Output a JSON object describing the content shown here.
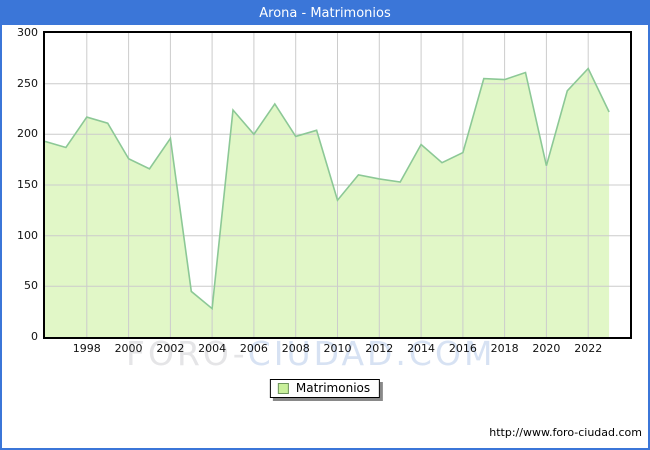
{
  "title": "Arona - Matrimonios",
  "legend": {
    "label": "Matrimonios"
  },
  "watermark": {
    "part1": "FORO-",
    "part2": "CIUDAD.COM"
  },
  "footer": {
    "url": "http://www.foro-ciudad.com"
  },
  "colors": {
    "titlebar": "#3b76d8",
    "frame_border": "#3b76d8",
    "area_fill": "#e1f7c7",
    "area_stroke": "#8cc896",
    "gridline": "#cccccc",
    "plot_border": "#000000",
    "legend_swatch_fill": "#c9f09b",
    "legend_swatch_border": "#6f955f",
    "watermark_gray": "#e5e5e7",
    "watermark_blue": "#d7e2f3"
  },
  "chart_data": {
    "type": "area",
    "title": "Arona - Matrimonios",
    "series_name": "Matrimonios",
    "x": [
      1996,
      1997,
      1998,
      1999,
      2000,
      2001,
      2002,
      2003,
      2004,
      2005,
      2006,
      2007,
      2008,
      2009,
      2010,
      2011,
      2012,
      2013,
      2014,
      2015,
      2016,
      2017,
      2018,
      2019,
      2020,
      2021,
      2022,
      2023
    ],
    "values": [
      193,
      187,
      217,
      211,
      176,
      166,
      196,
      45,
      28,
      224,
      200,
      230,
      198,
      204,
      135,
      160,
      156,
      153,
      190,
      172,
      182,
      255,
      254,
      261,
      169,
      243,
      265,
      222
    ],
    "ylim": [
      0,
      300
    ],
    "yticks": [
      0,
      50,
      100,
      150,
      200,
      250,
      300
    ],
    "xticks": [
      1998,
      2000,
      2002,
      2004,
      2006,
      2008,
      2010,
      2012,
      2014,
      2016,
      2018,
      2020,
      2022
    ],
    "x_axis_range": [
      1996,
      2024
    ],
    "grid": true,
    "legend_position": "bottom-center",
    "xlabel": "",
    "ylabel": ""
  }
}
